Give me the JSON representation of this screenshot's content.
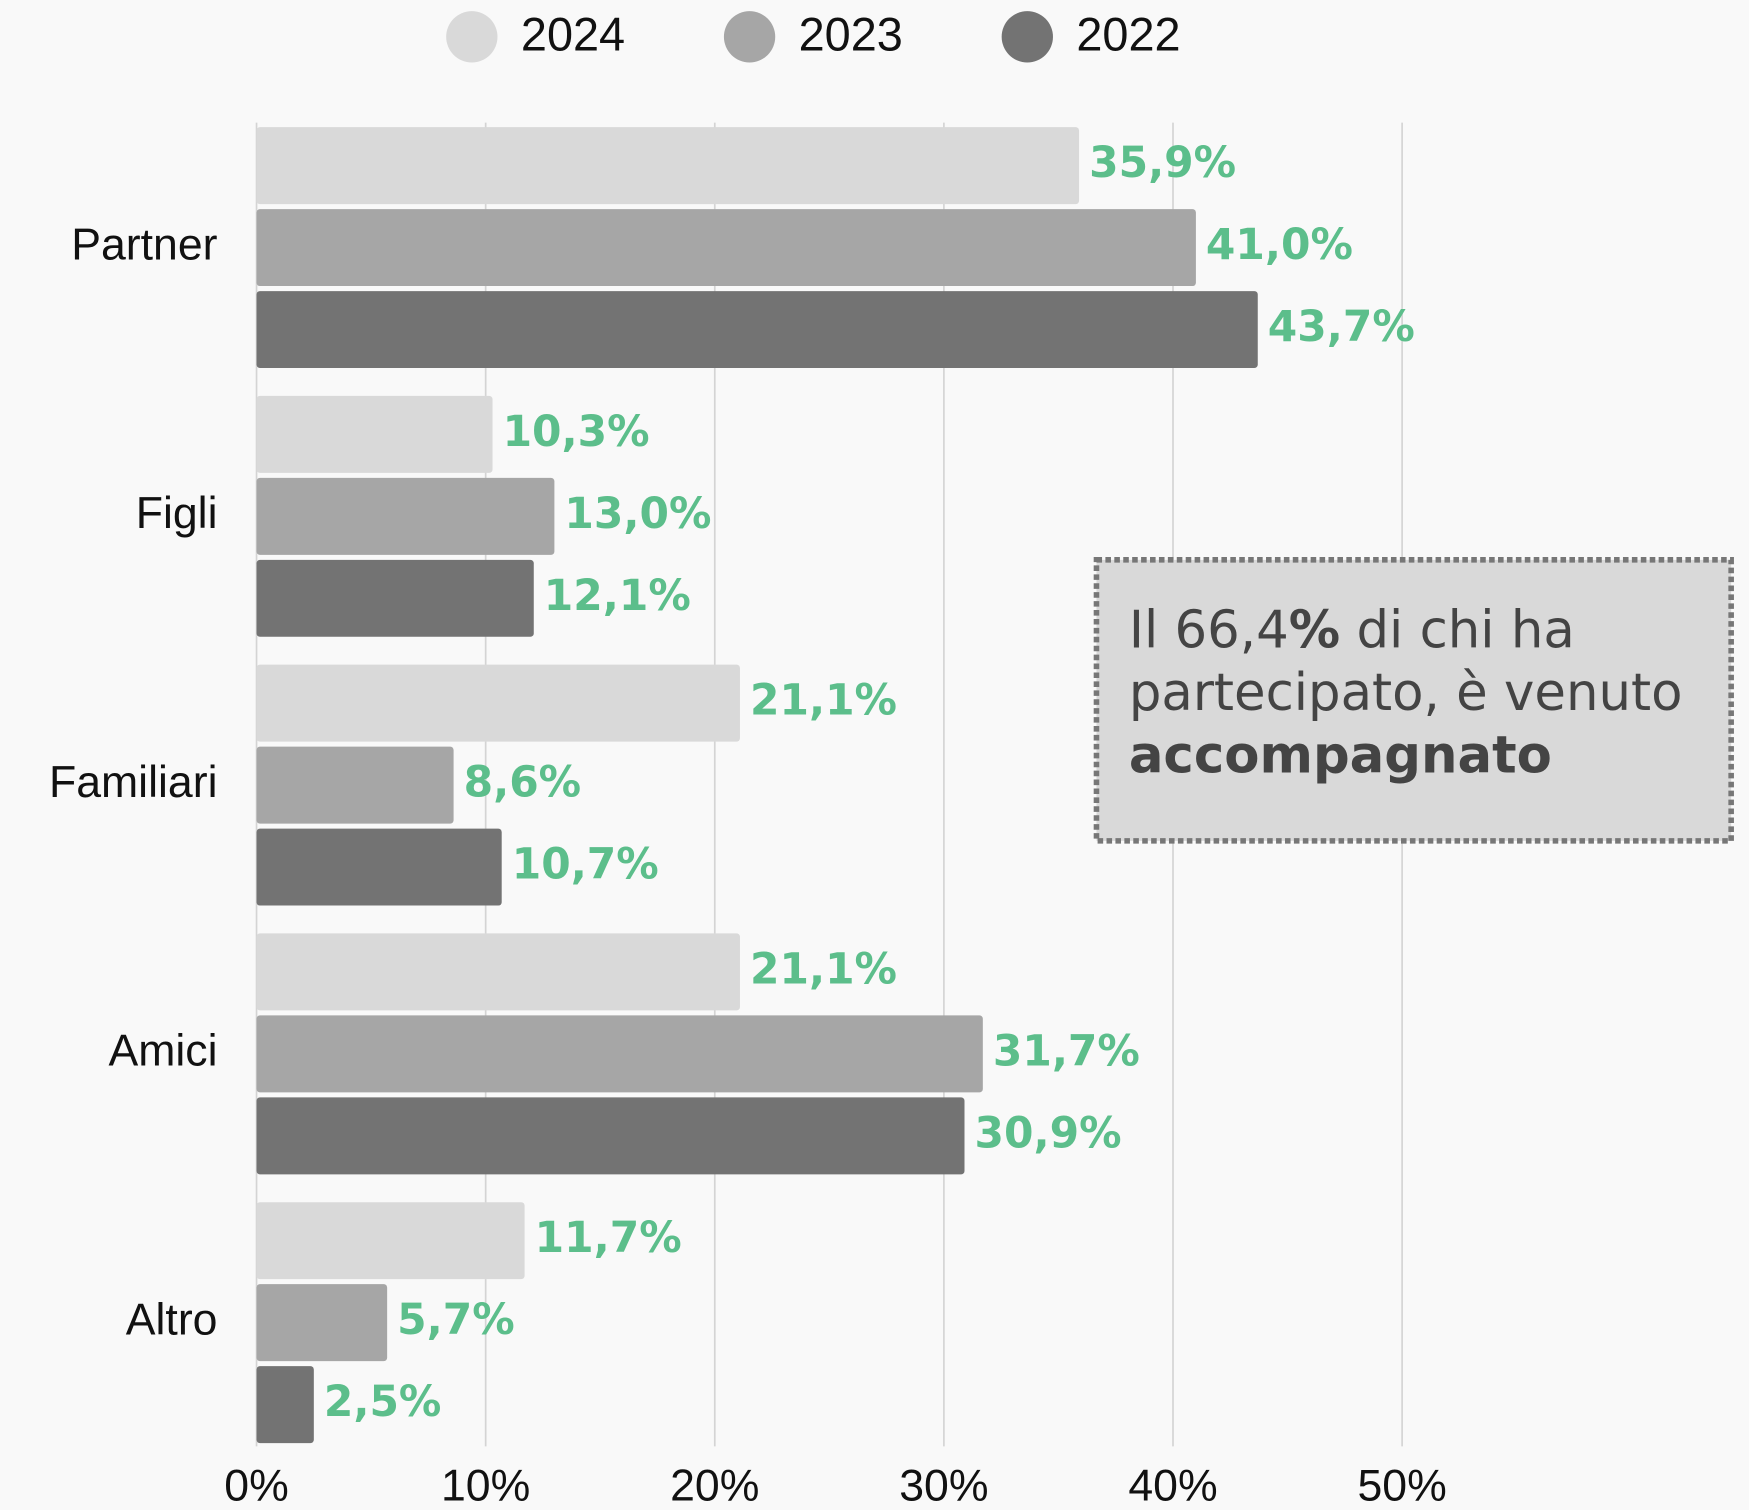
{
  "chart_data": {
    "type": "bar",
    "orientation": "horizontal",
    "categories": [
      "Partner",
      "Figli",
      "Familiari",
      "Amici",
      "Altro"
    ],
    "series": [
      {
        "name": "2024",
        "color": "#d9d9d9",
        "values": [
          35.9,
          10.3,
          21.1,
          21.1,
          11.7
        ],
        "value_labels": [
          "35,9%",
          "10,3%",
          "21,1%",
          "21,1%",
          "11,7%"
        ]
      },
      {
        "name": "2023",
        "color": "#a6a6a6",
        "values": [
          41.0,
          13.0,
          8.6,
          31.7,
          5.7
        ],
        "value_labels": [
          "41,0%",
          "13,0%",
          "8,6%",
          "31,7%",
          "5,7%"
        ]
      },
      {
        "name": "2022",
        "color": "#737373",
        "values": [
          43.7,
          12.1,
          10.7,
          30.9,
          2.5
        ],
        "value_labels": [
          "43,7%",
          "12,1%",
          "10,7%",
          "30,9%",
          "2,5%"
        ]
      }
    ],
    "xlim": [
      0,
      50
    ],
    "xticks": [
      {
        "value": 0,
        "label": "0%"
      },
      {
        "value": 10,
        "label": "10%"
      },
      {
        "value": 20,
        "label": "20%"
      },
      {
        "value": 30,
        "label": "30%"
      },
      {
        "value": 40,
        "label": "40%"
      },
      {
        "value": 50,
        "label": "50%"
      }
    ],
    "grid": true,
    "legend": "top",
    "annotation": {
      "lines": [
        [
          {
            "text": "Il 66,4",
            "bold": false
          },
          {
            "text": "%",
            "bold": true
          },
          {
            "text": " di chi ha",
            "bold": false
          }
        ],
        [
          {
            "text": "partecipato, è venuto",
            "bold": false
          }
        ],
        [
          {
            "text": "accompagnato",
            "bold": true
          }
        ]
      ]
    }
  }
}
